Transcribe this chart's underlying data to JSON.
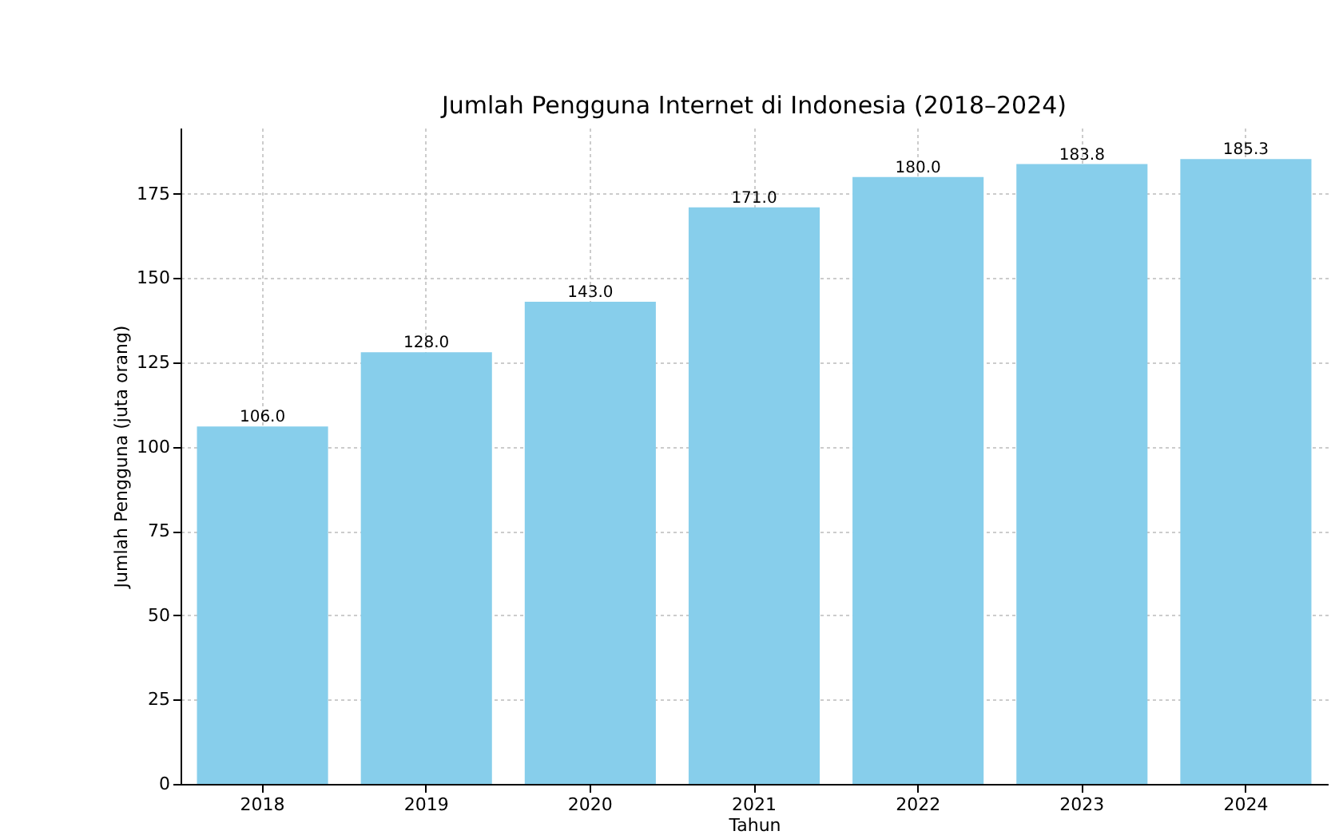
{
  "chart_data": {
    "type": "bar",
    "title": "Jumlah Pengguna Internet di Indonesia (2018–2024)",
    "xlabel": "Tahun",
    "ylabel": "Jumlah Pengguna (juta orang)",
    "categories": [
      "2018",
      "2019",
      "2020",
      "2021",
      "2022",
      "2023",
      "2024"
    ],
    "values": [
      106.0,
      128.0,
      143.0,
      171.0,
      180.0,
      183.8,
      185.3
    ],
    "value_labels": [
      "106.0",
      "128.0",
      "143.0",
      "171.0",
      "180.0",
      "183.8",
      "185.3"
    ],
    "color": "#87ceeb",
    "ylim": [
      0,
      194.6
    ],
    "yticks": [
      0,
      25,
      50,
      75,
      100,
      125,
      150,
      175
    ],
    "grid": true
  }
}
